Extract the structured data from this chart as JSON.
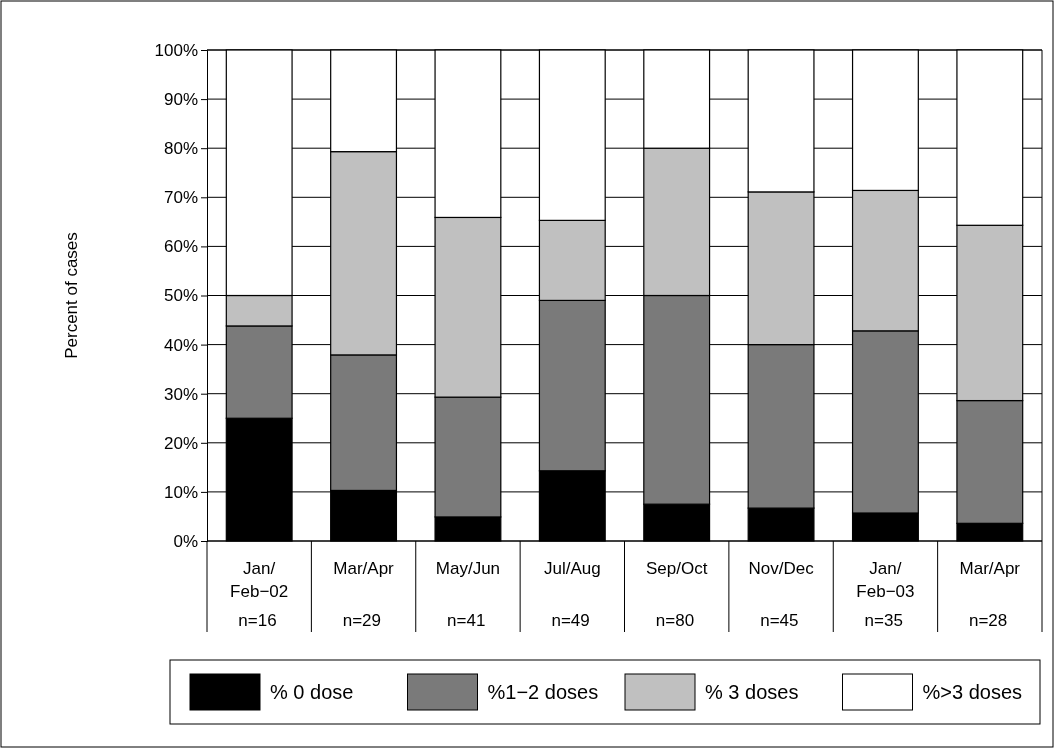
{
  "chart_data": {
    "type": "bar",
    "stacked": true,
    "ylabel": "Percent of cases",
    "categories": [
      "Jan/\nFeb−02\nn=16",
      "Mar/Apr\n\nn=29",
      "May/Jun\n\nn=41",
      "Jul/Aug\n\nn=49",
      "Sep/Oct\n\nn=80",
      "Nov/Dec\n\nn=45",
      "Jan/\nFeb−03\nn=35",
      "Mar/Apr\n\nn=28"
    ],
    "series": [
      {
        "name": "% 0 dose",
        "color": "#000000",
        "values": [
          25,
          10.3,
          4.9,
          14.3,
          7.5,
          6.7,
          5.7,
          3.6
        ]
      },
      {
        "name": "%1−2 doses",
        "color": "#7a7a7a",
        "values": [
          18.8,
          27.6,
          24.4,
          34.7,
          42.5,
          33.3,
          37.1,
          25
        ]
      },
      {
        "name": "% 3 doses",
        "color": "#c0c0c0",
        "values": [
          6.2,
          41.4,
          36.6,
          16.3,
          30,
          31.1,
          28.6,
          35.7
        ]
      },
      {
        "name": "%>3 doses",
        "color": "#ffffff",
        "values": [
          50,
          20.7,
          34.1,
          34.7,
          20,
          28.9,
          28.6,
          35.7
        ]
      }
    ],
    "ylim": [
      0,
      100
    ],
    "yticks": [
      {
        "value": 0,
        "label": "0%"
      },
      {
        "value": 10,
        "label": "10%"
      },
      {
        "value": 20,
        "label": "20%"
      },
      {
        "value": 30,
        "label": "30%"
      },
      {
        "value": 40,
        "label": "40%"
      },
      {
        "value": 50,
        "label": "50%"
      },
      {
        "value": 60,
        "label": "60%"
      },
      {
        "value": 70,
        "label": "70%"
      },
      {
        "value": 80,
        "label": "80%"
      },
      {
        "value": 90,
        "label": "90%"
      },
      {
        "value": 100,
        "label": "100%"
      }
    ],
    "grid": "y",
    "legend": "bottom"
  }
}
